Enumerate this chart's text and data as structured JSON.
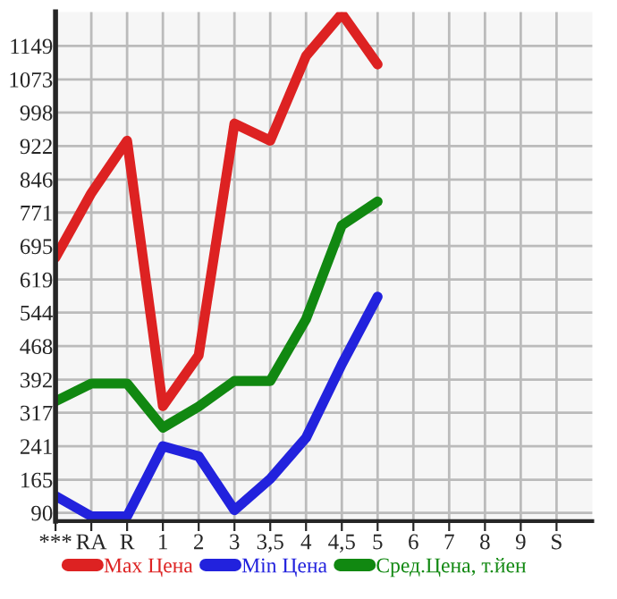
{
  "chart_data": {
    "type": "line",
    "categories": [
      "***",
      "RA",
      "R",
      "1",
      "2",
      "3",
      "3,5",
      "4",
      "4,5",
      "5",
      "6",
      "7",
      "8",
      "9",
      "S"
    ],
    "series": [
      {
        "name": "Max Цена",
        "color": "#dd2222",
        "values": [
          669,
          815,
          934,
          332,
          447,
          973,
          934,
          1126,
          1222,
          1107,
          null,
          null,
          null,
          null,
          null
        ]
      },
      {
        "name": "Min Цена",
        "color": "#2222dd",
        "values": [
          128,
          82,
          82,
          241,
          218,
          96,
          167,
          260,
          427,
          580,
          null,
          null,
          null,
          null,
          null
        ]
      },
      {
        "name": "Сред.Цена, т.йен",
        "color": "#118811",
        "values": [
          343,
          383,
          383,
          283,
          331,
          389,
          389,
          529,
          742,
          796,
          null,
          null,
          null,
          null,
          null
        ]
      }
    ],
    "ylim": [
      71,
      1226
    ],
    "yticks": [
      90,
      165,
      241,
      317,
      392,
      468,
      544,
      619,
      695,
      771,
      846,
      922,
      998,
      1073,
      1149
    ],
    "grid": true,
    "legend": "bottom",
    "marker": "none",
    "line_style": "solid"
  }
}
